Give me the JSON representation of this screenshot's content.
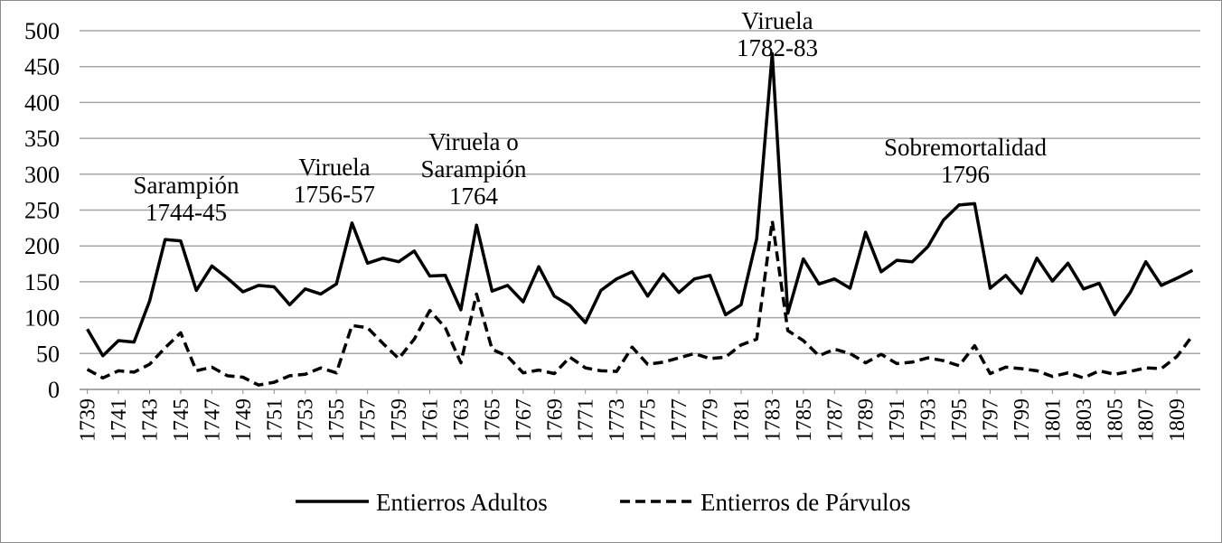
{
  "chart_data": {
    "type": "line",
    "title": "",
    "xlabel": "",
    "ylabel": "",
    "ylim": [
      0,
      500
    ],
    "yticks": [
      "0",
      "50",
      "100",
      "150",
      "200",
      "250",
      "300",
      "350",
      "400",
      "450",
      "500"
    ],
    "grid": true,
    "legend_position": "bottom",
    "x": [
      1739,
      1740,
      1741,
      1742,
      1743,
      1744,
      1745,
      1746,
      1747,
      1748,
      1749,
      1750,
      1751,
      1752,
      1753,
      1754,
      1755,
      1756,
      1757,
      1758,
      1759,
      1760,
      1761,
      1762,
      1763,
      1764,
      1765,
      1766,
      1767,
      1768,
      1769,
      1770,
      1771,
      1772,
      1773,
      1774,
      1775,
      1776,
      1777,
      1778,
      1779,
      1780,
      1781,
      1782,
      1783,
      1784,
      1785,
      1786,
      1787,
      1788,
      1789,
      1790,
      1791,
      1792,
      1793,
      1794,
      1795,
      1796,
      1797,
      1798,
      1799,
      1800,
      1801,
      1802,
      1803,
      1804,
      1805,
      1806,
      1807,
      1808,
      1809,
      1810
    ],
    "xtick_labels": [
      "1739",
      "1741",
      "1743",
      "1745",
      "1747",
      "1749",
      "1751",
      "1753",
      "1755",
      "1757",
      "1759",
      "1761",
      "1763",
      "1765",
      "1767",
      "1769",
      "1771",
      "1773",
      "1775",
      "1777",
      "1779",
      "1781",
      "1783",
      "1785",
      "1787",
      "1789",
      "1791",
      "1793",
      "1795",
      "1797",
      "1799",
      "1801",
      "1803",
      "1805",
      "1807",
      "1809"
    ],
    "series": [
      {
        "name": "Entierros Adultos",
        "style": "solid",
        "color": "#000000",
        "values": [
          84,
          47,
          68,
          66,
          123,
          209,
          207,
          138,
          172,
          155,
          136,
          145,
          143,
          118,
          140,
          133,
          147,
          232,
          176,
          183,
          178,
          193,
          158,
          159,
          111,
          229,
          137,
          145,
          122,
          171,
          130,
          117,
          93,
          138,
          154,
          164,
          130,
          161,
          135,
          154,
          159,
          104,
          118,
          210,
          468,
          106,
          182,
          147,
          154,
          141,
          219,
          164,
          180,
          178,
          199,
          236,
          257,
          259,
          141,
          159,
          134,
          183,
          151,
          176,
          140,
          148,
          104,
          135,
          178,
          145,
          155,
          166
        ]
      },
      {
        "name": "Entierros de Párvulos",
        "style": "dashed",
        "color": "#000000",
        "values": [
          28,
          16,
          26,
          24,
          35,
          58,
          79,
          26,
          31,
          19,
          17,
          6,
          10,
          19,
          21,
          30,
          23,
          89,
          86,
          64,
          43,
          70,
          110,
          86,
          37,
          133,
          56,
          46,
          23,
          27,
          22,
          45,
          30,
          26,
          25,
          59,
          35,
          38,
          44,
          50,
          43,
          45,
          62,
          70,
          235,
          82,
          68,
          47,
          56,
          50,
          37,
          49,
          36,
          38,
          44,
          40,
          33,
          61,
          22,
          31,
          29,
          26,
          18,
          23,
          16,
          26,
          21,
          25,
          30,
          29,
          46,
          75
        ]
      }
    ],
    "annotations": [
      {
        "lines": [
          "Sarampión",
          "1744-45"
        ]
      },
      {
        "lines": [
          "Viruela",
          "1756-57"
        ]
      },
      {
        "lines": [
          "Viruela o",
          "Sarampión",
          "1764"
        ]
      },
      {
        "lines": [
          "Viruela",
          "1782-83"
        ]
      },
      {
        "lines": [
          "Sobremortalidad",
          "1796"
        ]
      }
    ]
  }
}
